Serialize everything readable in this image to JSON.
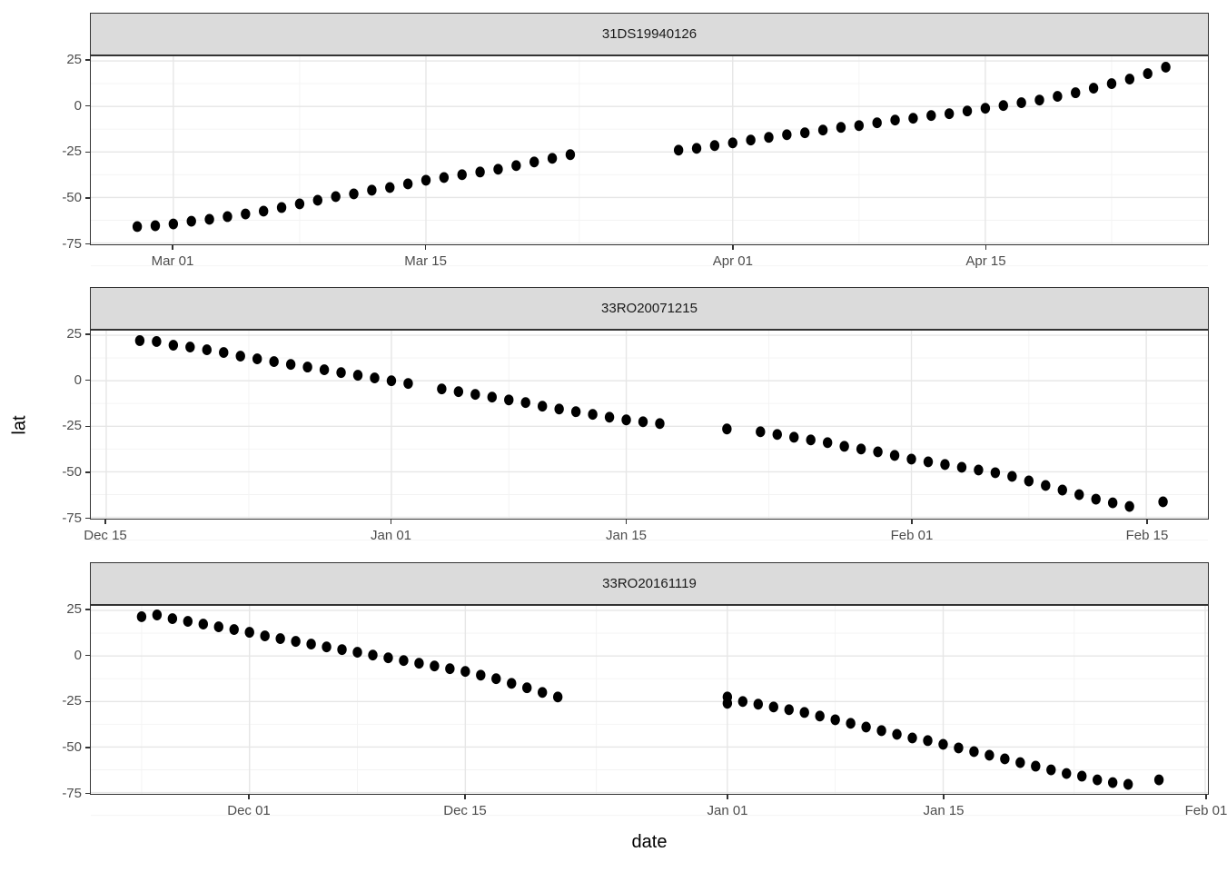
{
  "chart_data": {
    "type": "scatter",
    "title": "",
    "xlabel": "date",
    "ylabel": "lat",
    "marker": {
      "shape": "filled-circle",
      "color": "#000000"
    },
    "grid": "on",
    "legend": "none",
    "y_ticks": [
      25,
      0,
      -25,
      -50,
      -75
    ],
    "y_tick_labels": [
      "25",
      "0",
      "-25",
      "-50",
      "-75"
    ],
    "ylim": [
      -76.5,
      27.5
    ],
    "facets": [
      {
        "title": "31DS19940126",
        "x_tick_labels": [
          "Mar 01",
          "Mar 15",
          "Apr 01",
          "Apr 15"
        ],
        "points": [
          [
            "Feb 27",
            -66
          ],
          [
            "Feb 28",
            -65.5
          ],
          [
            "Mar 01",
            -64.5
          ],
          [
            "Mar 02",
            -63
          ],
          [
            "Mar 03",
            -62
          ],
          [
            "Mar 04",
            -60.5
          ],
          [
            "Mar 05",
            -59
          ],
          [
            "Mar 06",
            -57.5
          ],
          [
            "Mar 07",
            -55.5
          ],
          [
            "Mar 08",
            -53.5
          ],
          [
            "Mar 09",
            -51.5
          ],
          [
            "Mar 10",
            -49.5
          ],
          [
            "Mar 11",
            -48
          ],
          [
            "Mar 12",
            -46
          ],
          [
            "Mar 13",
            -44.5
          ],
          [
            "Mar 14",
            -42.5
          ],
          [
            "Mar 15",
            -40.5
          ],
          [
            "Mar 16",
            -39
          ],
          [
            "Mar 17",
            -37.5
          ],
          [
            "Mar 18",
            -36
          ],
          [
            "Mar 19",
            -34.5
          ],
          [
            "Mar 20",
            -32.5
          ],
          [
            "Mar 21",
            -30.5
          ],
          [
            "Mar 22",
            -28.5
          ],
          [
            "Mar 23",
            -26.5
          ],
          [
            "Mar 29",
            -24
          ],
          [
            "Mar 30",
            -23
          ],
          [
            "Mar 31",
            -21.5
          ],
          [
            "Apr 01",
            -20
          ],
          [
            "Apr 02",
            -18.5
          ],
          [
            "Apr 03",
            -17
          ],
          [
            "Apr 04",
            -15.5
          ],
          [
            "Apr 05",
            -14.5
          ],
          [
            "Apr 06",
            -13
          ],
          [
            "Apr 07",
            -11.5
          ],
          [
            "Apr 08",
            -10.5
          ],
          [
            "Apr 09",
            -9
          ],
          [
            "Apr 10",
            -7.5
          ],
          [
            "Apr 11",
            -6.5
          ],
          [
            "Apr 12",
            -5
          ],
          [
            "Apr 13",
            -4
          ],
          [
            "Apr 14",
            -2.5
          ],
          [
            "Apr 15",
            -1
          ],
          [
            "Apr 16",
            0.5
          ],
          [
            "Apr 17",
            2
          ],
          [
            "Apr 18",
            3.5
          ],
          [
            "Apr 19",
            5.5
          ],
          [
            "Apr 20",
            7.5
          ],
          [
            "Apr 21",
            10
          ],
          [
            "Apr 22",
            12.5
          ],
          [
            "Apr 23",
            15
          ],
          [
            "Apr 24",
            18
          ],
          [
            "Apr 25",
            21.5
          ]
        ]
      },
      {
        "title": "33RO20071215",
        "x_tick_labels": [
          "Dec 15",
          "Jan 01",
          "Jan 15",
          "Feb 01",
          "Feb 15"
        ],
        "points": [
          [
            "Dec 17",
            22
          ],
          [
            "Dec 18",
            21.5
          ],
          [
            "Dec 19",
            19.5
          ],
          [
            "Dec 20",
            18.5
          ],
          [
            "Dec 21",
            17
          ],
          [
            "Dec 22",
            15.5
          ],
          [
            "Dec 23",
            13.5
          ],
          [
            "Dec 24",
            12
          ],
          [
            "Dec 25",
            10.5
          ],
          [
            "Dec 26",
            9
          ],
          [
            "Dec 27",
            7.5
          ],
          [
            "Dec 28",
            6
          ],
          [
            "Dec 29",
            4.5
          ],
          [
            "Dec 30",
            3
          ],
          [
            "Dec 31",
            1.5
          ],
          [
            "Jan 01",
            0
          ],
          [
            "Jan 02",
            -1.5
          ],
          [
            "Jan 04",
            -4.5
          ],
          [
            "Jan 05",
            -6
          ],
          [
            "Jan 06",
            -7.5
          ],
          [
            "Jan 07",
            -9
          ],
          [
            "Jan 08",
            -10.5
          ],
          [
            "Jan 09",
            -12
          ],
          [
            "Jan 10",
            -14
          ],
          [
            "Jan 11",
            -15.5
          ],
          [
            "Jan 12",
            -17
          ],
          [
            "Jan 13",
            -18.5
          ],
          [
            "Jan 14",
            -20
          ],
          [
            "Jan 15",
            -21.5
          ],
          [
            "Jan 16",
            -22.5
          ],
          [
            "Jan 17",
            -23.5
          ],
          [
            "Jan 21",
            -26.5
          ],
          [
            "Jan 23",
            -28
          ],
          [
            "Jan 24",
            -29.5
          ],
          [
            "Jan 25",
            -31
          ],
          [
            "Jan 26",
            -32.5
          ],
          [
            "Jan 27",
            -34
          ],
          [
            "Jan 28",
            -36
          ],
          [
            "Jan 29",
            -37.5
          ],
          [
            "Jan 30",
            -39
          ],
          [
            "Jan 31",
            -41
          ],
          [
            "Feb 01",
            -43
          ],
          [
            "Feb 02",
            -44.5
          ],
          [
            "Feb 03",
            -46
          ],
          [
            "Feb 04",
            -47.5
          ],
          [
            "Feb 05",
            -49
          ],
          [
            "Feb 06",
            -50.5
          ],
          [
            "Feb 07",
            -52.5
          ],
          [
            "Feb 08",
            -55
          ],
          [
            "Feb 09",
            -57.5
          ],
          [
            "Feb 10",
            -60
          ],
          [
            "Feb 11",
            -62.5
          ],
          [
            "Feb 12",
            -65
          ],
          [
            "Feb 13",
            -67
          ],
          [
            "Feb 14",
            -69
          ],
          [
            "Feb 16",
            -66.5
          ]
        ]
      },
      {
        "title": "33RO20161119",
        "x_tick_labels": [
          "Dec 01",
          "Dec 15",
          "Jan 01",
          "Jan 15",
          "Feb 01"
        ],
        "points": [
          [
            "Nov 24",
            21.5
          ],
          [
            "Nov 25",
            22.5
          ],
          [
            "Nov 26",
            20.5
          ],
          [
            "Nov 27",
            19
          ],
          [
            "Nov 28",
            17.5
          ],
          [
            "Nov 29",
            16
          ],
          [
            "Nov 30",
            14.5
          ],
          [
            "Dec 01",
            13
          ],
          [
            "Dec 02",
            11
          ],
          [
            "Dec 03",
            9.5
          ],
          [
            "Dec 04",
            8
          ],
          [
            "Dec 05",
            6.5
          ],
          [
            "Dec 06",
            5
          ],
          [
            "Dec 07",
            3.5
          ],
          [
            "Dec 08",
            2
          ],
          [
            "Dec 09",
            0.5
          ],
          [
            "Dec 10",
            -1
          ],
          [
            "Dec 11",
            -2.5
          ],
          [
            "Dec 12",
            -4
          ],
          [
            "Dec 13",
            -5.5
          ],
          [
            "Dec 14",
            -7
          ],
          [
            "Dec 15",
            -8.5
          ],
          [
            "Dec 16",
            -10.5
          ],
          [
            "Dec 17",
            -12.5
          ],
          [
            "Dec 18",
            -15
          ],
          [
            "Dec 19",
            -17.5
          ],
          [
            "Dec 20",
            -20
          ],
          [
            "Dec 21",
            -22.5
          ],
          [
            "Jan 01",
            -22.5
          ],
          [
            "Jan 01",
            -26
          ],
          [
            "Jan 02",
            -25
          ],
          [
            "Jan 03",
            -26.5
          ],
          [
            "Jan 04",
            -28
          ],
          [
            "Jan 05",
            -29.5
          ],
          [
            "Jan 06",
            -31
          ],
          [
            "Jan 07",
            -33
          ],
          [
            "Jan 08",
            -35
          ],
          [
            "Jan 09",
            -37
          ],
          [
            "Jan 10",
            -39
          ],
          [
            "Jan 11",
            -41
          ],
          [
            "Jan 12",
            -43
          ],
          [
            "Jan 13",
            -45
          ],
          [
            "Jan 14",
            -46.5
          ],
          [
            "Jan 15",
            -48.5
          ],
          [
            "Jan 16",
            -50.5
          ],
          [
            "Jan 17",
            -52.5
          ],
          [
            "Jan 18",
            -54.5
          ],
          [
            "Jan 19",
            -56.5
          ],
          [
            "Jan 20",
            -58.5
          ],
          [
            "Jan 21",
            -60.5
          ],
          [
            "Jan 22",
            -62.5
          ],
          [
            "Jan 23",
            -64.5
          ],
          [
            "Jan 24",
            -66
          ],
          [
            "Jan 25",
            -68
          ],
          [
            "Jan 26",
            -69.5
          ],
          [
            "Jan 27",
            -70.5
          ],
          [
            "Jan 29",
            -68
          ]
        ]
      }
    ]
  },
  "axes": {
    "y_title": "lat",
    "x_title": "date"
  },
  "theme": {
    "strip_fill": "#DBDBDB",
    "panel_border": "#333333",
    "grid_major": "#E6E6E6",
    "grid_minor": "#F3F3F3",
    "tick_text": "#4D4D4D",
    "point_color": "#000000"
  }
}
